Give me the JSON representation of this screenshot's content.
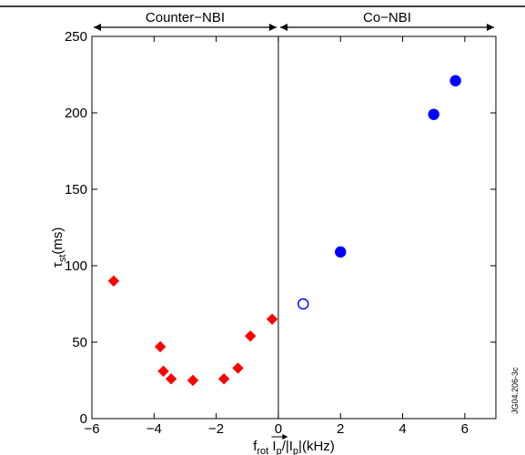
{
  "chart_data": {
    "type": "scatter",
    "xlim": [
      -6,
      7
    ],
    "ylim": [
      0,
      250
    ],
    "x_ticks": [
      -6,
      -4,
      -2,
      0,
      2,
      4,
      6
    ],
    "y_ticks": [
      0,
      50,
      100,
      150,
      200,
      250
    ],
    "xlabel": {
      "main": "f",
      "main_sub": "rot",
      "vec": "I",
      "vec_sub": "p",
      "rest": "/|I",
      "rest_sub": "p",
      "tail": "|(kHz)"
    },
    "ylabel": {
      "main": "τ",
      "sub": "st",
      "tail": "(ms)"
    },
    "regions": [
      {
        "label": "Counter−NBI",
        "from": -6,
        "to": 0
      },
      {
        "label": "Co−NBI",
        "from": 0,
        "to": 7
      }
    ],
    "vertical_line_x": 0,
    "series": [
      {
        "marker": "diamond",
        "color": "#ff0000",
        "filled": true,
        "points": [
          {
            "x": -5.3,
            "y": 90
          },
          {
            "x": -3.8,
            "y": 47
          },
          {
            "x": -3.7,
            "y": 31
          },
          {
            "x": -3.45,
            "y": 26
          },
          {
            "x": -2.75,
            "y": 25
          },
          {
            "x": -1.75,
            "y": 26
          },
          {
            "x": -1.3,
            "y": 33
          },
          {
            "x": -0.9,
            "y": 54
          },
          {
            "x": -0.2,
            "y": 65
          }
        ]
      },
      {
        "marker": "circle",
        "color": "#0000ff",
        "filled": true,
        "points": [
          {
            "x": 2.0,
            "y": 109
          },
          {
            "x": 5.0,
            "y": 199
          },
          {
            "x": 5.7,
            "y": 221
          }
        ]
      },
      {
        "marker": "circle",
        "color": "#0000ff",
        "filled": false,
        "points": [
          {
            "x": 0.8,
            "y": 75
          }
        ]
      }
    ],
    "side_text": "JG04.206-3c"
  }
}
